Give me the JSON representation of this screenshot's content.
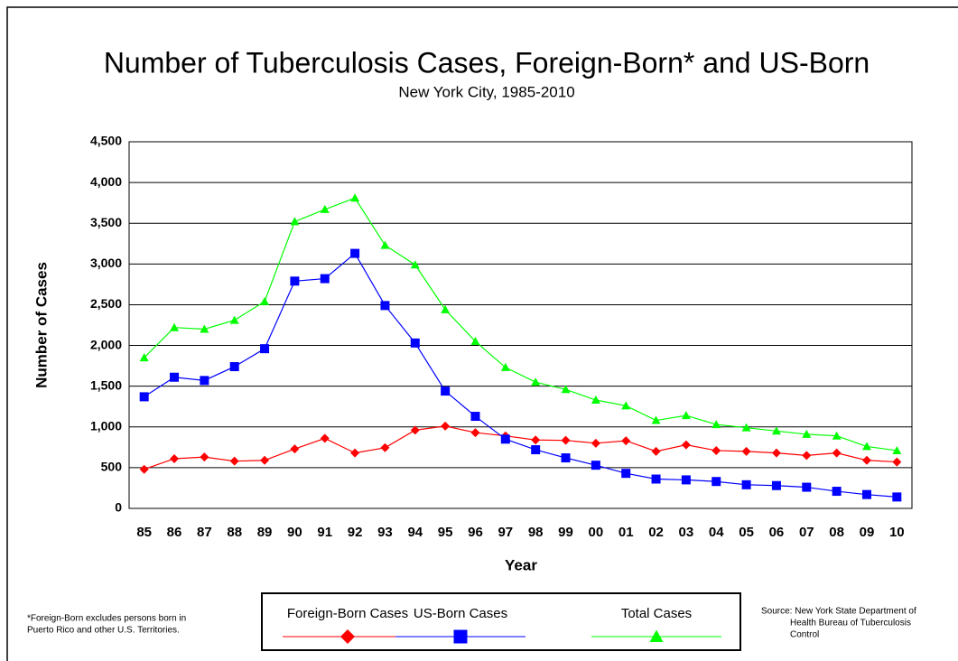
{
  "chart_data": {
    "type": "line",
    "title": "Number of Tuberculosis Cases, Foreign-Born* and US-Born",
    "subtitle": "New York City, 1985-2010",
    "x_label": "Year",
    "y_label": "Number of Cases",
    "footnote": [
      "*Foreign-Born excludes persons born in",
      "Puerto Rico and other U.S. Territories."
    ],
    "source": [
      "Source: New York State Department of",
      "Health Bureau of Tuberculosis",
      "Control"
    ],
    "categories": [
      "85",
      "86",
      "87",
      "88",
      "89",
      "90",
      "91",
      "92",
      "93",
      "94",
      "95",
      "96",
      "97",
      "98",
      "99",
      "00",
      "01",
      "02",
      "03",
      "04",
      "05",
      "06",
      "07",
      "08",
      "09",
      "10"
    ],
    "series": [
      {
        "name": "Foreign-Born Cases",
        "color": "#ff0000",
        "marker": "diamond",
        "values": [
          480,
          610,
          630,
          580,
          590,
          730,
          860,
          680,
          745,
          960,
          1010,
          930,
          890,
          840,
          835,
          800,
          830,
          700,
          780,
          710,
          700,
          680,
          650,
          680,
          590,
          570
        ]
      },
      {
        "name": "US-Born Cases",
        "color": "#0000ff",
        "marker": "square",
        "values": [
          1370,
          1610,
          1570,
          1740,
          1960,
          2790,
          2820,
          3130,
          2490,
          2030,
          1440,
          1130,
          850,
          720,
          620,
          530,
          430,
          360,
          350,
          330,
          290,
          280,
          260,
          210,
          170,
          140
        ]
      },
      {
        "name": "Total Cases",
        "color": "#00ff00",
        "marker": "triangle",
        "values": [
          1850,
          2220,
          2200,
          2310,
          2540,
          3520,
          3670,
          3810,
          3230,
          2990,
          2440,
          2050,
          1730,
          1550,
          1460,
          1330,
          1260,
          1080,
          1140,
          1030,
          990,
          950,
          910,
          890,
          760,
          710
        ]
      }
    ],
    "ylim": [
      0,
      4500
    ],
    "yticks": [
      0,
      500,
      {
        "value": 1000,
        "label": "1,000"
      },
      {
        "value": 1500,
        "label": "1,500"
      },
      {
        "value": 2000,
        "label": "2,000"
      },
      {
        "value": 2500,
        "label": "2,500"
      },
      {
        "value": 3000,
        "label": "3,000"
      },
      {
        "value": 3500,
        "label": "3,500"
      },
      {
        "value": 4000,
        "label": "4,000"
      },
      {
        "value": 4500,
        "label": "4,500"
      }
    ],
    "grid": true
  }
}
